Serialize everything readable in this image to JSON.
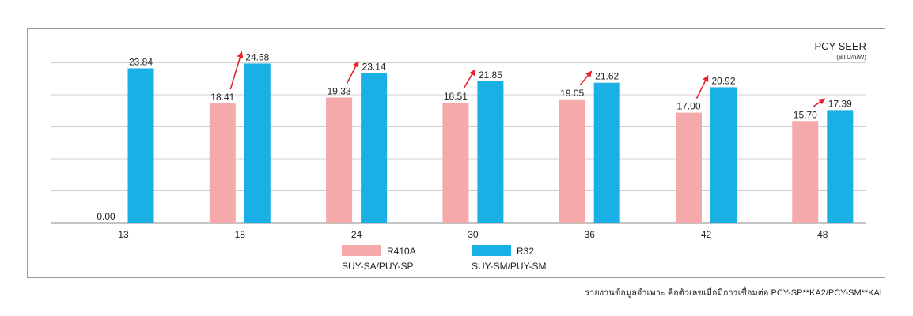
{
  "chart_data": {
    "type": "bar",
    "title": "PCY SEER",
    "subtitle": "(BTU/h/W)",
    "categories": [
      "13",
      "18",
      "24",
      "30",
      "36",
      "42",
      "48"
    ],
    "series": [
      {
        "name": "R410A",
        "sublabel": "SUY-SA/PUY-SP",
        "color": "#f5a9ab",
        "values": [
          0.0,
          18.41,
          19.33,
          18.51,
          19.05,
          17.0,
          15.7
        ]
      },
      {
        "name": "R32",
        "sublabel": "SUY-SM/PUY-SM",
        "color": "#1ab0e6",
        "values": [
          23.84,
          24.58,
          23.14,
          21.85,
          21.62,
          20.92,
          17.39
        ]
      }
    ],
    "value_labels": [
      [
        "0.00",
        "18.41",
        "19.33",
        "18.51",
        "19.05",
        "17.00",
        "15.70"
      ],
      [
        "23.84",
        "24.58",
        "23.14",
        "21.85",
        "21.62",
        "20.92",
        "17.39"
      ]
    ],
    "ylim": [
      0,
      25
    ],
    "grid": true,
    "legend_position": "bottom-center",
    "arrow_color": "#e6232a"
  },
  "footnote": "รายงานข้อมูลจำเพาะ คือตัวเลขเมื่อมีการเชื่อมต่อ PCY-SP**KA2/PCY-SM**KAL"
}
